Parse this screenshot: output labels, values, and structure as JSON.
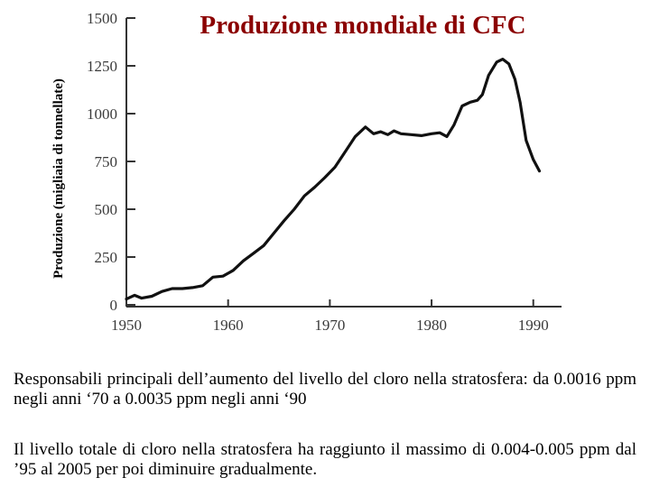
{
  "chart_data": {
    "type": "line",
    "title": "Produzione mondiale di CFC",
    "xlabel": "",
    "ylabel": "Produzione (migliaia di tonnellate)",
    "xlim": [
      1950,
      1991
    ],
    "ylim": [
      0,
      1500
    ],
    "xticks": [
      1950,
      1960,
      1970,
      1980,
      1990
    ],
    "yticks": [
      0,
      250,
      500,
      750,
      1000,
      1250,
      1500
    ],
    "xtick_labels": [
      "1950",
      "1960",
      "1970",
      "1980",
      "1990"
    ],
    "ytick_labels": [
      "0",
      "250",
      "500",
      "750",
      "1000",
      "1250",
      "1500"
    ],
    "grid": false,
    "legend": "none",
    "line_color": "#111111",
    "title_color": "#8b0000",
    "series": [
      {
        "x": [
          1950,
          1950.8,
          1951.5,
          1952.5,
          1953.5,
          1954.5,
          1955.5,
          1956.5,
          1957.5,
          1958.5,
          1959.5,
          1960.5,
          1961.5,
          1962.5,
          1963.5,
          1964.5,
          1965.5,
          1966.5,
          1967.5,
          1968.5,
          1969.5,
          1970.5,
          1971.5,
          1972.5,
          1973.5,
          1974.3,
          1975,
          1975.7,
          1976.3,
          1977,
          1978,
          1979,
          1980,
          1980.8,
          1981.5,
          1982.2,
          1983,
          1983.8,
          1984.5,
          1985,
          1985.6,
          1986.4,
          1987,
          1987.6,
          1988.2,
          1988.7,
          1989.3,
          1990,
          1990.6
        ],
        "y": [
          30,
          50,
          35,
          45,
          70,
          85,
          85,
          90,
          100,
          145,
          150,
          180,
          230,
          270,
          310,
          375,
          440,
          500,
          570,
          615,
          665,
          720,
          800,
          880,
          930,
          895,
          905,
          890,
          910,
          895,
          890,
          885,
          895,
          900,
          880,
          940,
          1040,
          1060,
          1070,
          1100,
          1200,
          1270,
          1285,
          1260,
          1180,
          1060,
          860,
          760,
          700
        ]
      }
    ]
  },
  "text": {
    "paragraph1": "Responsabili principali dell’aumento del livello del cloro nella stratosfera: da 0.0016 ppm negli anni ‘70 a 0.0035 ppm negli anni ‘90",
    "paragraph2": "Il livello totale di cloro nella stratosfera ha raggiunto il massimo di 0.004-0.005 ppm dal ’95 al 2005 per poi diminuire gradualmente."
  }
}
